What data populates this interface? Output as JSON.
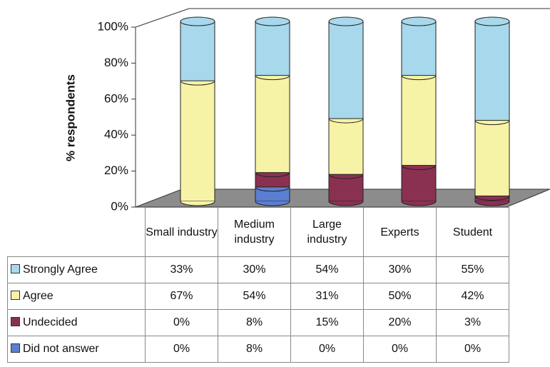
{
  "chart_data": {
    "type": "bar",
    "ylabel": "% respondents",
    "categories": [
      "Small industry",
      "Medium industry",
      "Large industry",
      "Experts",
      "Student"
    ],
    "series": [
      {
        "name": "Strongly Agree",
        "color": "#a8d8ec",
        "values": [
          33,
          30,
          54,
          30,
          55
        ],
        "value_labels": [
          "33%",
          "30%",
          "54%",
          "30%",
          "55%"
        ]
      },
      {
        "name": "Agree",
        "color": "#f7f3a6",
        "values": [
          67,
          54,
          31,
          50,
          42
        ],
        "value_labels": [
          "67%",
          "54%",
          "31%",
          "50%",
          "42%"
        ]
      },
      {
        "name": "Undecided",
        "color": "#8a3152",
        "values": [
          0,
          8,
          15,
          20,
          3
        ],
        "value_labels": [
          "0%",
          "8%",
          "15%",
          "20%",
          "3%"
        ]
      },
      {
        "name": "Did not answer",
        "color": "#5b7fd0",
        "values": [
          0,
          8,
          0,
          0,
          0
        ],
        "value_labels": [
          "0%",
          "8%",
          "0%",
          "0%",
          "0%"
        ]
      }
    ],
    "ylim": [
      0,
      100
    ],
    "yticks": [
      {
        "value": 0,
        "label": "0%"
      },
      {
        "value": 20,
        "label": "20%"
      },
      {
        "value": 40,
        "label": "40%"
      },
      {
        "value": 60,
        "label": "60%"
      },
      {
        "value": 80,
        "label": "80%"
      },
      {
        "value": 100,
        "label": "100%"
      }
    ]
  }
}
